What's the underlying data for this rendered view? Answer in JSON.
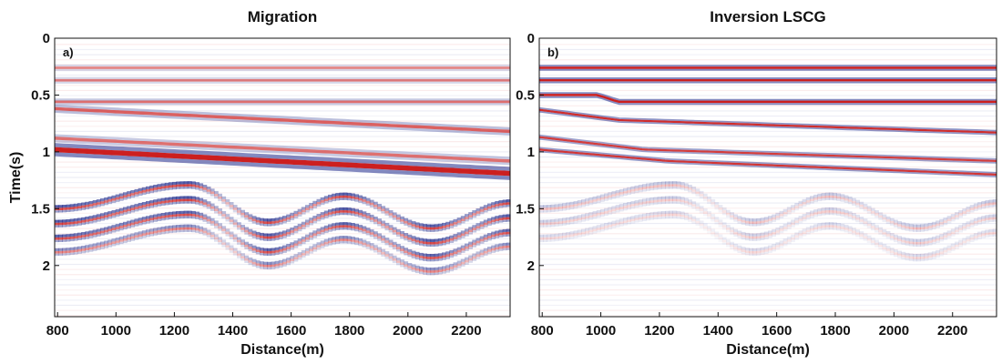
{
  "chart_data": [
    {
      "type": "heatmap",
      "panel_letter": "a)",
      "title": "Migration",
      "xlabel": "Distance(m)",
      "ylabel": "Time(s)",
      "xlim": [
        790,
        2350
      ],
      "ylim": [
        2.45,
        0
      ],
      "x_ticks": [
        800,
        1000,
        1200,
        1400,
        1600,
        1800,
        2000,
        2200
      ],
      "y_ticks": [
        0,
        0.5,
        1,
        1.5,
        2
      ],
      "y_tick_labels": [
        "0",
        "0.5",
        "1",
        "1.5",
        "2"
      ],
      "colormap": {
        "positive": "#cc1f1f",
        "negative": "#1f2a8c",
        "zero": "#ffffff"
      },
      "reflectors": [
        {
          "x": [
            790,
            2350
          ],
          "t": [
            0.26,
            0.26
          ],
          "amp": 0.3,
          "thickness": 0.02
        },
        {
          "x": [
            790,
            2350
          ],
          "t": [
            0.37,
            0.37
          ],
          "amp": 0.35,
          "thickness": 0.02
        },
        {
          "x": [
            790,
            2350
          ],
          "t": [
            0.56,
            0.56
          ],
          "amp": 0.45,
          "thickness": 0.02
        },
        {
          "x": [
            790,
            2350
          ],
          "t": [
            0.62,
            0.82
          ],
          "amp": 0.55,
          "thickness": 0.025
        },
        {
          "x": [
            790,
            2350
          ],
          "t": [
            0.88,
            1.08
          ],
          "amp": 0.45,
          "thickness": 0.025
        },
        {
          "x": [
            790,
            2350
          ],
          "t": [
            0.98,
            1.19
          ],
          "amp": 1.0,
          "thickness": 0.04
        }
      ],
      "diffraction_events": [
        {
          "x": [
            790,
            1250,
            1520,
            1780,
            2080,
            2350
          ],
          "t": [
            1.5,
            1.29,
            1.62,
            1.39,
            1.67,
            1.45
          ],
          "amp": 0.9
        },
        {
          "x": [
            790,
            1250,
            1520,
            1780,
            2080,
            2350
          ],
          "t": [
            1.63,
            1.42,
            1.75,
            1.52,
            1.8,
            1.58
          ],
          "amp": 0.9
        },
        {
          "x": [
            790,
            1250,
            1520,
            1780,
            2080,
            2350
          ],
          "t": [
            1.76,
            1.55,
            1.88,
            1.65,
            1.93,
            1.71
          ],
          "amp": 0.85
        },
        {
          "x": [
            790,
            1250,
            1520,
            1780,
            2080,
            2350
          ],
          "t": [
            1.88,
            1.67,
            2.0,
            1.77,
            2.05,
            1.83
          ],
          "amp": 0.6
        }
      ]
    },
    {
      "type": "heatmap",
      "panel_letter": "b)",
      "title": "Inversion LSCG",
      "xlabel": "Distance(m)",
      "ylabel": "",
      "xlim": [
        790,
        2350
      ],
      "ylim": [
        2.45,
        0
      ],
      "x_ticks": [
        800,
        1000,
        1200,
        1400,
        1600,
        1800,
        2000,
        2200
      ],
      "y_ticks": [
        0,
        0.5,
        1,
        1.5,
        2
      ],
      "y_tick_labels": [
        "0",
        "0.5",
        "1",
        "1.5",
        "2"
      ],
      "colormap": {
        "positive": "#cc1f1f",
        "negative": "#1f2a8c",
        "zero": "#ffffff"
      },
      "reflectors": [
        {
          "x": [
            790,
            2350
          ],
          "t": [
            0.26,
            0.26
          ],
          "amp": 1.0,
          "thickness": 0.018
        },
        {
          "x": [
            790,
            2350
          ],
          "t": [
            0.37,
            0.37
          ],
          "amp": 1.0,
          "thickness": 0.018
        },
        {
          "x": [
            790,
            990,
            1060,
            2350
          ],
          "t": [
            0.5,
            0.5,
            0.56,
            0.56
          ],
          "amp": 1.0,
          "thickness": 0.018
        },
        {
          "x": [
            790,
            1060,
            2350
          ],
          "t": [
            0.63,
            0.72,
            0.83
          ],
          "amp": 0.9,
          "thickness": 0.016
        },
        {
          "x": [
            790,
            1150,
            2350
          ],
          "t": [
            0.87,
            0.98,
            1.08
          ],
          "amp": 0.8,
          "thickness": 0.016
        },
        {
          "x": [
            790,
            1230,
            2350
          ],
          "t": [
            0.98,
            1.08,
            1.2
          ],
          "amp": 0.85,
          "thickness": 0.016
        }
      ],
      "diffraction_events": [
        {
          "x": [
            790,
            1250,
            1520,
            1780,
            2080,
            2350
          ],
          "t": [
            1.5,
            1.29,
            1.62,
            1.39,
            1.67,
            1.45
          ],
          "amp": 0.3
        },
        {
          "x": [
            790,
            1250,
            1520,
            1780,
            2080,
            2350
          ],
          "t": [
            1.63,
            1.42,
            1.75,
            1.52,
            1.8,
            1.58
          ],
          "amp": 0.25
        },
        {
          "x": [
            790,
            1250,
            1520,
            1780,
            2080,
            2350
          ],
          "t": [
            1.76,
            1.55,
            1.88,
            1.65,
            1.93,
            1.71
          ],
          "amp": 0.2
        }
      ]
    }
  ]
}
